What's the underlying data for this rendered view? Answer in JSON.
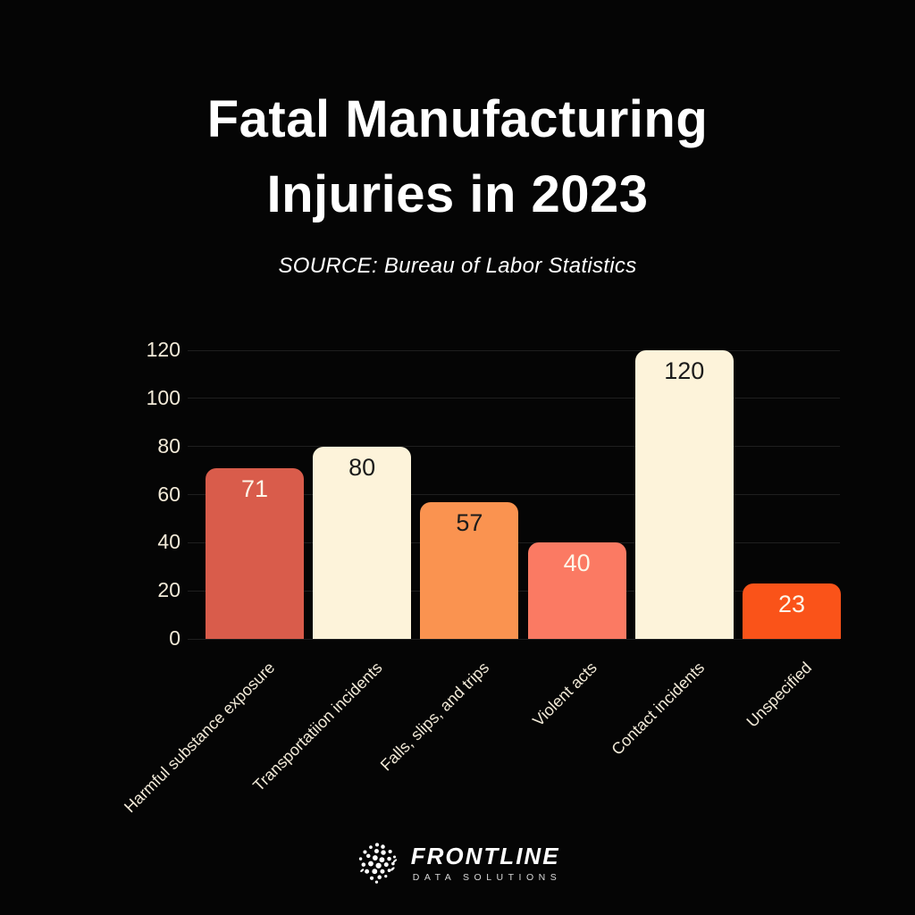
{
  "title": {
    "line1": "Fatal Manufacturing",
    "line2": "Injuries in 2023"
  },
  "subtitle": "SOURCE: Bureau of Labor Statistics",
  "chart_data": {
    "type": "bar",
    "title": "Fatal Manufacturing Injuries in 2023",
    "subtitle": "SOURCE: Bureau of Labor Statistics",
    "categories": [
      "Harmful substance exposure",
      "Transportatiion incidents",
      "Falls, slips, and trips",
      "Violent acts",
      "Contact incidents",
      "Unspecified"
    ],
    "values": [
      71,
      80,
      57,
      40,
      120,
      23
    ],
    "bar_colors": [
      "#d95c4b",
      "#fdf3da",
      "#fa9350",
      "#fb7a63",
      "#fdf3da",
      "#fa5319"
    ],
    "value_label_colors": [
      "#fdf6e8",
      "#1b1b1b",
      "#1b1b1b",
      "#fdf6e8",
      "#1b1b1b",
      "#fdf6e8"
    ],
    "xlabel": "",
    "ylabel": "",
    "ylim": [
      0,
      120
    ],
    "yticks": [
      0,
      20,
      40,
      60,
      80,
      100,
      120
    ],
    "grid": true,
    "legend": false,
    "background_color": "#050505",
    "tick_label_color": "#f2ead8",
    "grid_color": "#1f1f1f"
  },
  "footer": {
    "logo_icon": "dotted-globe-icon",
    "brand": "FRONTLINE",
    "brand_sub": "DATA SOLUTIONS"
  }
}
